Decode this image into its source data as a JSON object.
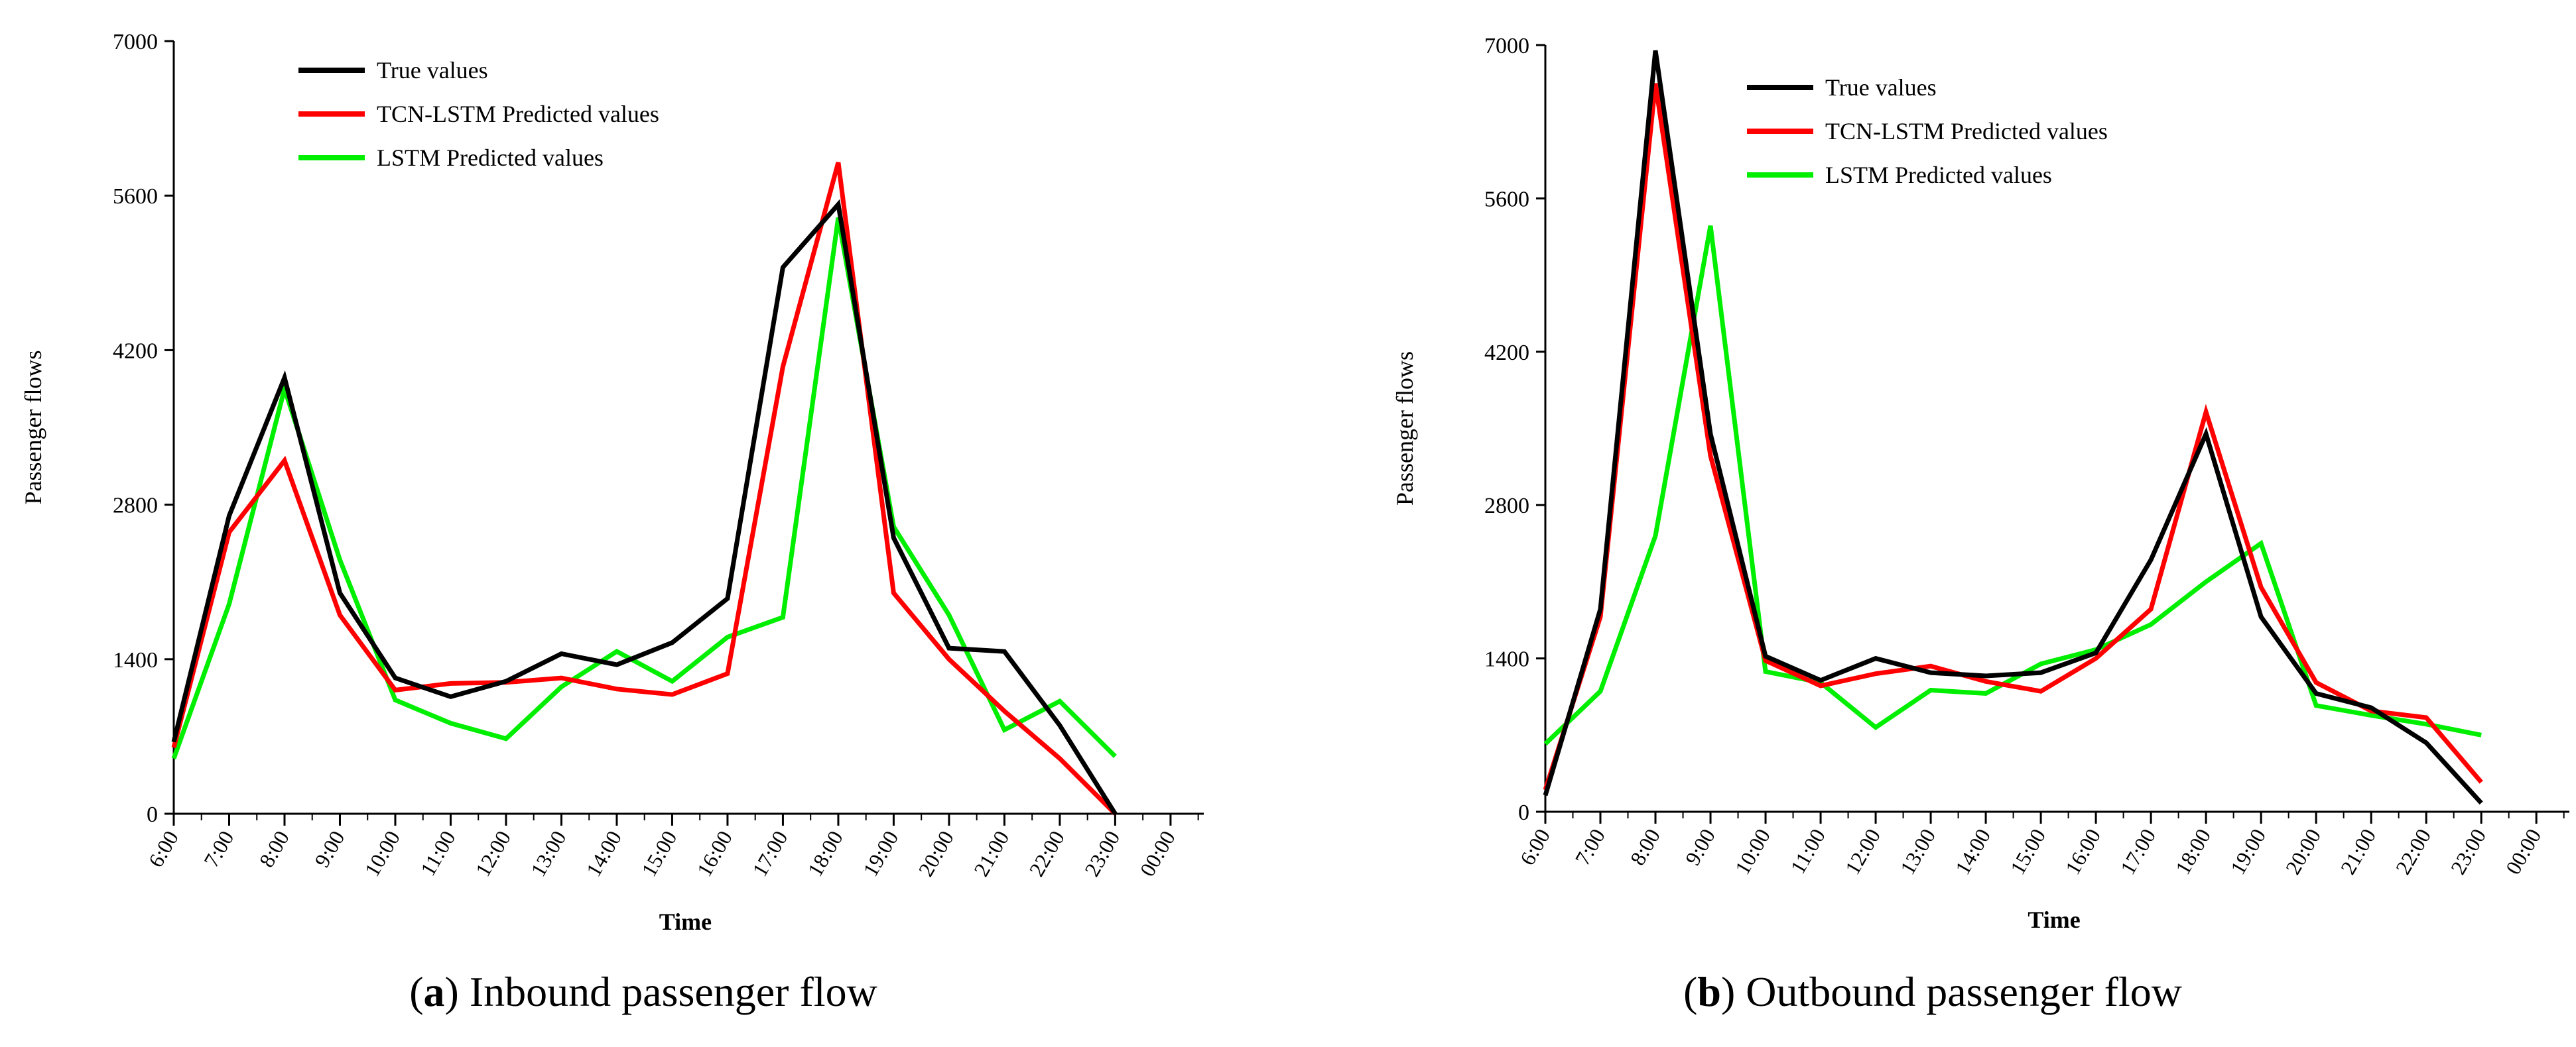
{
  "chart_data": [
    {
      "type": "line",
      "panel_label": "a",
      "caption": "Inbound passenger flow",
      "xlabel": "Time",
      "ylabel": "Passenger flows",
      "categories": [
        "6:00",
        "7:00",
        "8:00",
        "9:00",
        "10:00",
        "11:00",
        "12:00",
        "13:00",
        "14:00",
        "15:00",
        "16:00",
        "17:00",
        "18:00",
        "19:00",
        "20:00",
        "21:00",
        "22:00",
        "23:00",
        "00:00"
      ],
      "ylim": [
        0,
        7000
      ],
      "yticks": [
        0,
        1400,
        2800,
        4200,
        5600,
        7000
      ],
      "legend_position": "top-left",
      "series": [
        {
          "name": "True values",
          "color": "#000000",
          "values": [
            650,
            2700,
            3950,
            2000,
            1230,
            1060,
            1200,
            1450,
            1350,
            1550,
            1950,
            4950,
            5520,
            2500,
            1500,
            1470,
            800,
            0,
            null
          ]
        },
        {
          "name": "TCN-LSTM Predicted values",
          "color": "#ff0000",
          "values": [
            600,
            2550,
            3200,
            1800,
            1120,
            1180,
            1190,
            1230,
            1130,
            1080,
            1270,
            4050,
            5900,
            2000,
            1400,
            930,
            500,
            0,
            null
          ]
        },
        {
          "name": "LSTM Predicted values",
          "color": "#00ee00",
          "values": [
            500,
            1900,
            3850,
            2300,
            1030,
            820,
            680,
            1150,
            1470,
            1200,
            1600,
            1780,
            5400,
            2600,
            1800,
            760,
            1020,
            520,
            null
          ]
        }
      ]
    },
    {
      "type": "line",
      "panel_label": "b",
      "caption": "Outbound passenger flow",
      "xlabel": "Time",
      "ylabel": "Passenger flows",
      "categories": [
        "6:00",
        "7:00",
        "8:00",
        "9:00",
        "10:00",
        "11:00",
        "12:00",
        "13:00",
        "14:00",
        "15:00",
        "16:00",
        "17:00",
        "18:00",
        "19:00",
        "20:00",
        "21:00",
        "22:00",
        "23:00",
        "00:00"
      ],
      "ylim": [
        0,
        7000
      ],
      "yticks": [
        0,
        1400,
        2800,
        4200,
        5600,
        7000
      ],
      "legend_position": "top-left",
      "series": [
        {
          "name": "True values",
          "color": "#000000",
          "values": [
            150,
            1850,
            6950,
            3450,
            1420,
            1200,
            1400,
            1270,
            1240,
            1270,
            1450,
            2300,
            3450,
            1780,
            1080,
            950,
            630,
            80,
            null
          ]
        },
        {
          "name": "TCN-LSTM Predicted values",
          "color": "#ff0000",
          "values": [
            200,
            1780,
            6650,
            3250,
            1380,
            1150,
            1260,
            1330,
            1190,
            1100,
            1400,
            1850,
            3650,
            2050,
            1180,
            920,
            860,
            270,
            null
          ]
        },
        {
          "name": "LSTM Predicted values",
          "color": "#00ee00",
          "values": [
            620,
            1100,
            2520,
            5350,
            1280,
            1180,
            770,
            1110,
            1080,
            1350,
            1480,
            1710,
            2100,
            2450,
            970,
            880,
            800,
            700,
            null
          ]
        }
      ]
    }
  ]
}
